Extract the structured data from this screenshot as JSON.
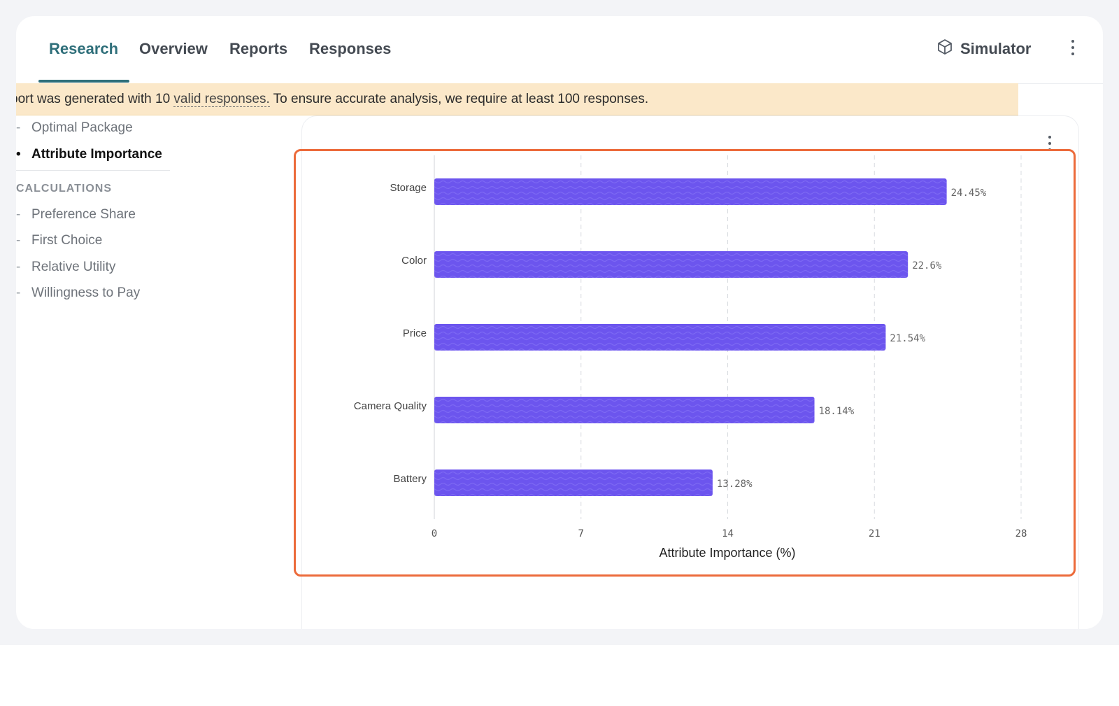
{
  "tabs": [
    {
      "label": "Research",
      "active": true
    },
    {
      "label": "Overview",
      "active": false
    },
    {
      "label": "Reports",
      "active": false
    },
    {
      "label": "Responses",
      "active": false
    }
  ],
  "header": {
    "simulator_label": "Simulator",
    "simulator_icon": "cube-icon",
    "menu_icon": "more-vertical-icon"
  },
  "banner": {
    "prefix": "port was generated with 10 ",
    "link": "valid responses.",
    "suffix": " To ensure accurate analysis, we require at least 100 responses."
  },
  "sidebar": {
    "items_top": [
      {
        "label": "Optimal Package",
        "active": false
      },
      {
        "label": "Attribute Importance",
        "active": true
      }
    ],
    "heading": "CALCULATIONS",
    "items_calc": [
      {
        "label": "Preference Share"
      },
      {
        "label": "First Choice"
      },
      {
        "label": "Relative Utility"
      },
      {
        "label": "Willingness to Pay"
      }
    ]
  },
  "colors": {
    "accent": "#2f6f7a",
    "bar": "#6c55ee",
    "highlight": "#ec6b3b",
    "banner": "#fbe8c9"
  },
  "chart_data": {
    "type": "bar",
    "orientation": "horizontal",
    "categories": [
      "Storage",
      "Color",
      "Price",
      "Camera Quality",
      "Battery"
    ],
    "values": [
      24.45,
      22.6,
      21.54,
      18.14,
      13.28
    ],
    "value_labels": [
      "24.45%",
      "22.6%",
      "21.54%",
      "18.14%",
      "13.28%"
    ],
    "xticks": [
      0,
      7,
      14,
      21,
      28
    ],
    "xlim": [
      0,
      28
    ],
    "xlabel": "Attribute Importance (%)",
    "grid": "vertical dashed"
  }
}
